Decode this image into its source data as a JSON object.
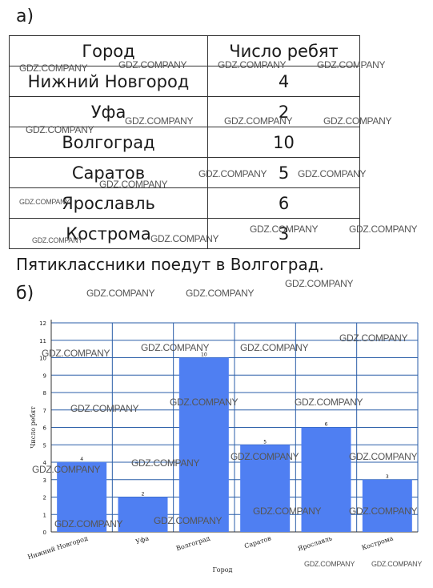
{
  "section_a_label": "а)",
  "table": {
    "headers": [
      "Город",
      "Число ребят"
    ],
    "rows": [
      [
        "Нижний Новгород",
        "4"
      ],
      [
        "Уфа",
        "2"
      ],
      [
        "Волгоград",
        "10"
      ],
      [
        "Саратов",
        "5"
      ],
      [
        "Ярославль",
        "6"
      ],
      [
        "Кострома",
        "3"
      ]
    ]
  },
  "answer_text": "Пятиклассники поедут в Волгоград.",
  "section_b_label": "б)",
  "watermark": "GDZ.COMPANY",
  "colors": {
    "bar": "#4f7ff2",
    "grid": "#2a5ea8",
    "axis": "#333333"
  },
  "chart_data": {
    "type": "bar",
    "categories": [
      "Нижний Новгород",
      "Уфа",
      "Волгоград",
      "Саратов",
      "Ярославль",
      "Кострома"
    ],
    "values": [
      4,
      2,
      10,
      5,
      6,
      3
    ],
    "data_labels": [
      "4",
      "2",
      "10",
      "5",
      "6",
      "3"
    ],
    "xlabel": "Город",
    "ylabel": "Число ребят",
    "ylim": [
      0,
      12
    ],
    "yticks": [
      0,
      1,
      2,
      3,
      4,
      5,
      6,
      7,
      8,
      9,
      10,
      11,
      12
    ],
    "grid": true
  }
}
